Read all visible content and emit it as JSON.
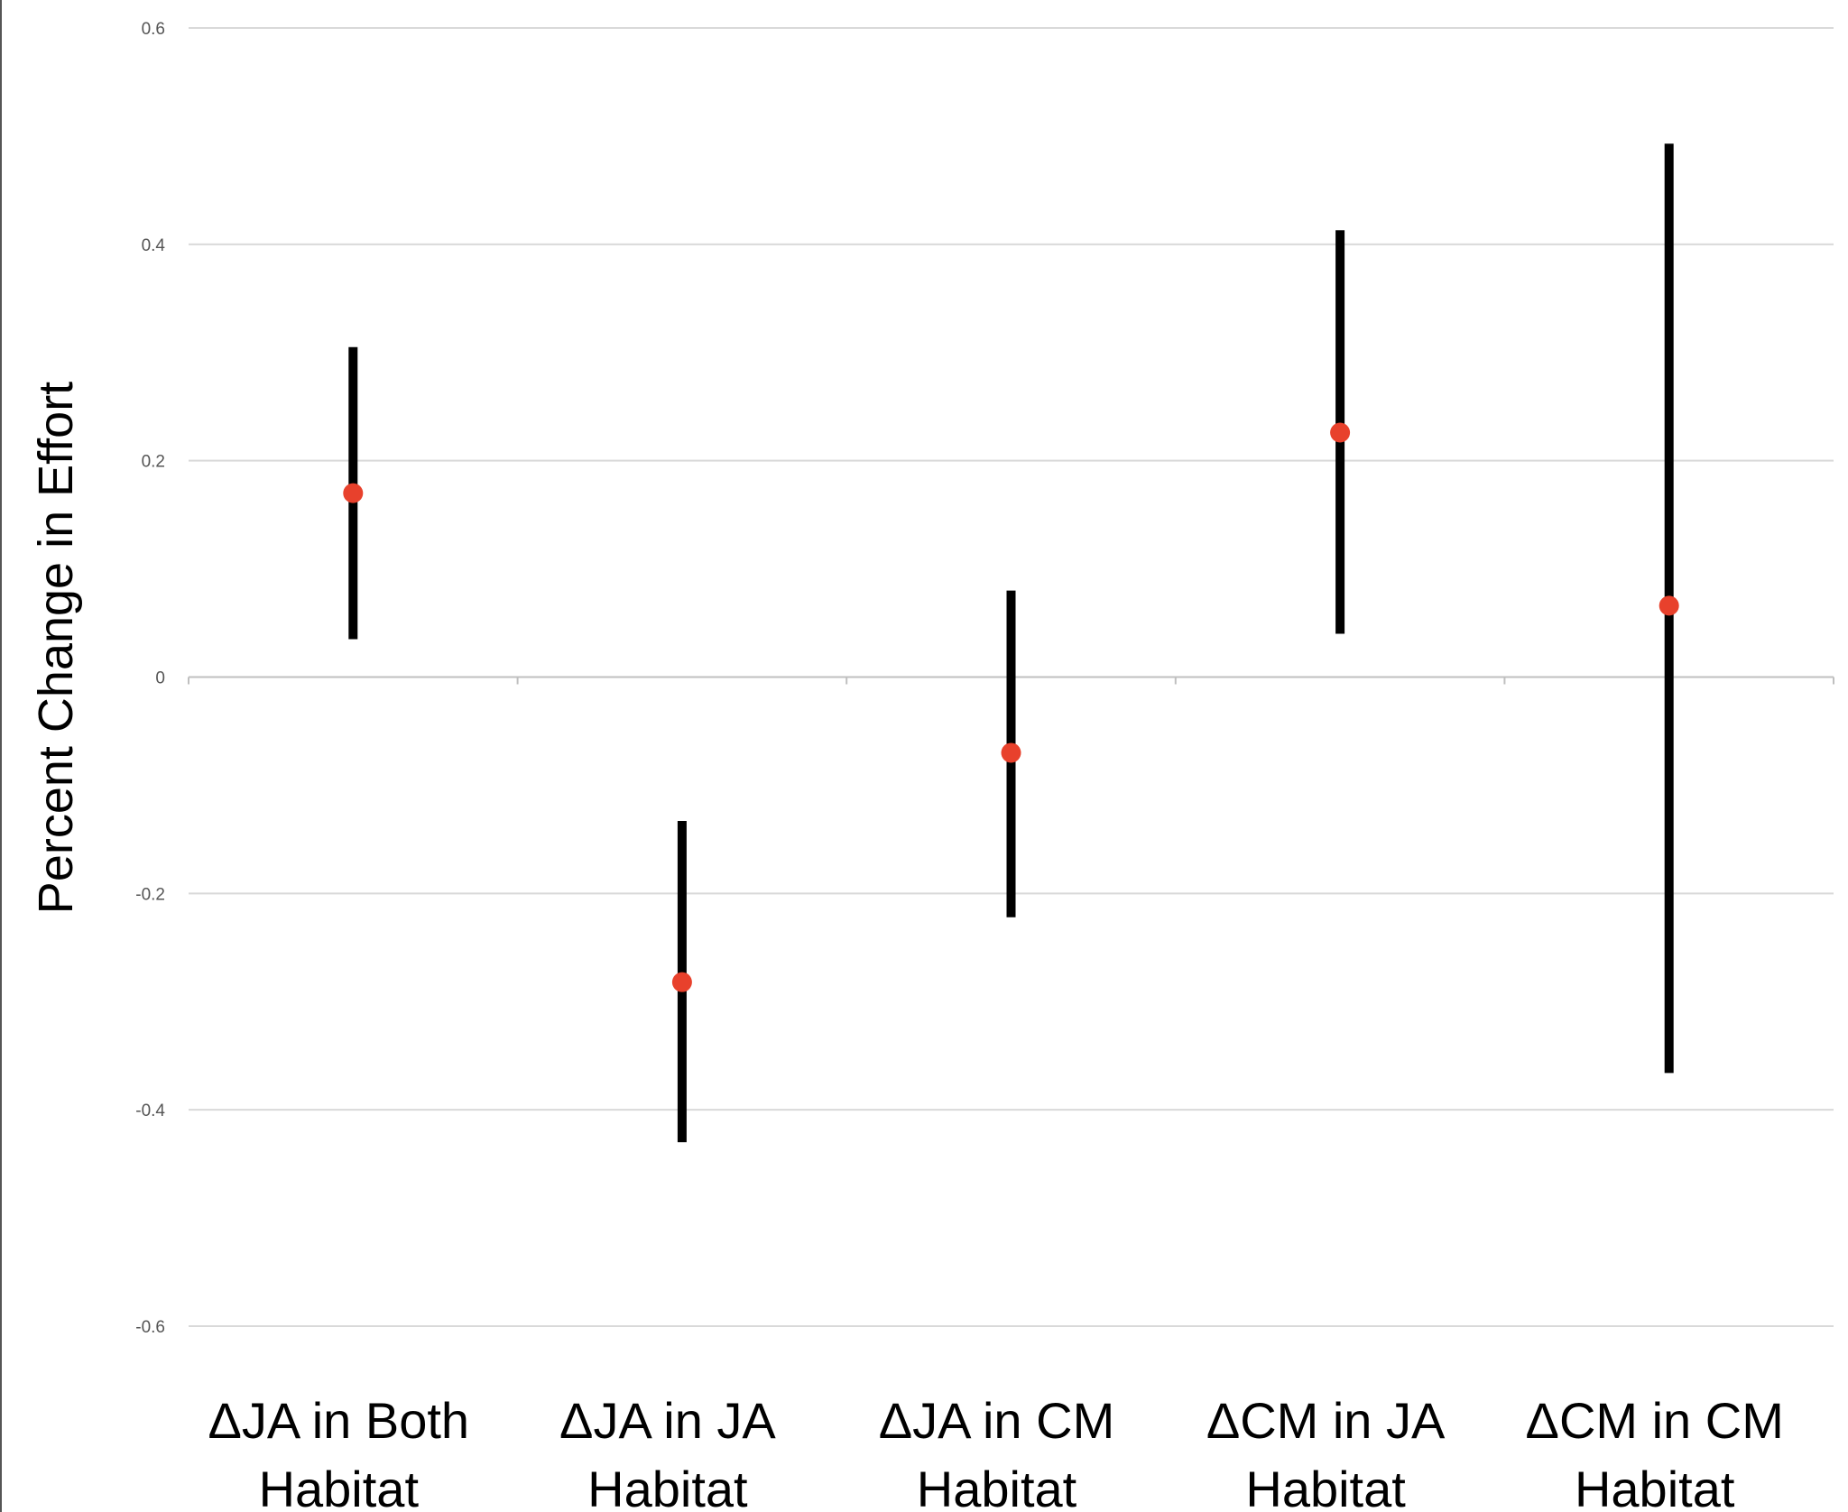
{
  "chart_data": {
    "type": "scatter",
    "ylabel": "Percent Change in Effort",
    "xlabel": "",
    "title": "",
    "ylim": [
      -0.6,
      0.6
    ],
    "yticks": [
      "0.6",
      "0.4",
      "0.2",
      "0",
      "-0.2",
      "-0.4",
      "-0.6"
    ],
    "grid": true,
    "categories": [
      [
        "ΔJA in Both",
        "Habitat"
      ],
      [
        "ΔJA in JA",
        "Habitat"
      ],
      [
        "ΔJA in CM",
        "Habitat"
      ],
      [
        "ΔCM in JA",
        "Habitat"
      ],
      [
        "ΔCM in CM",
        "Habitat"
      ]
    ],
    "points": [
      {
        "value": 0.17,
        "lower": 0.035,
        "upper": 0.305
      },
      {
        "value": -0.282,
        "lower": -0.43,
        "upper": -0.133
      },
      {
        "value": -0.07,
        "lower": -0.222,
        "upper": 0.08
      },
      {
        "value": 0.226,
        "lower": 0.04,
        "upper": 0.413
      },
      {
        "value": 0.066,
        "lower": -0.366,
        "upper": 0.493
      }
    ],
    "colors": {
      "point": "#e8412c",
      "errorbar": "#000000",
      "grid": "#d9d9d9",
      "axis": "#bfbfbf"
    }
  }
}
